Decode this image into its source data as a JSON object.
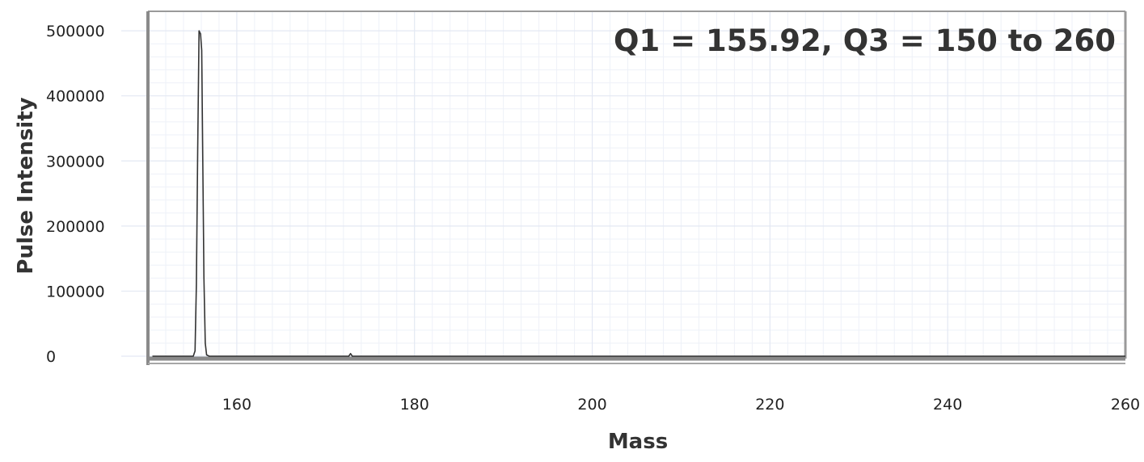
{
  "chart_data": {
    "type": "line",
    "title": "",
    "annotation": "Q1 = 155.92, Q3 = 150 to 260",
    "xlabel": "Mass",
    "ylabel": "Pulse Intensity",
    "xlim": [
      150,
      260
    ],
    "ylim": [
      0,
      520000
    ],
    "x_ticks": [
      160,
      180,
      200,
      220,
      240,
      260
    ],
    "x_tick_labels": [
      "160",
      "180",
      "200",
      "220",
      "240",
      "260"
    ],
    "y_ticks": [
      0,
      100000,
      200000,
      300000,
      400000,
      500000
    ],
    "y_tick_labels": [
      "0",
      "100000",
      "200000",
      "300000",
      "400000",
      "500000"
    ],
    "grid": true,
    "line_color": "#333333",
    "grid_color": "#e3e8f3",
    "series": [
      {
        "x": [
          150.5,
          155.1,
          155.3,
          155.45,
          155.6,
          155.75,
          155.92,
          156.05,
          156.15,
          156.3,
          156.45,
          156.6,
          156.9,
          157.5,
          170,
          172.6,
          172.8,
          173.0,
          175,
          260
        ],
        "y": [
          0,
          0,
          8000,
          110000,
          320000,
          500000,
          495000,
          470000,
          330000,
          120000,
          20000,
          2000,
          0,
          0,
          0,
          0,
          4000,
          0,
          0,
          0
        ]
      }
    ]
  }
}
